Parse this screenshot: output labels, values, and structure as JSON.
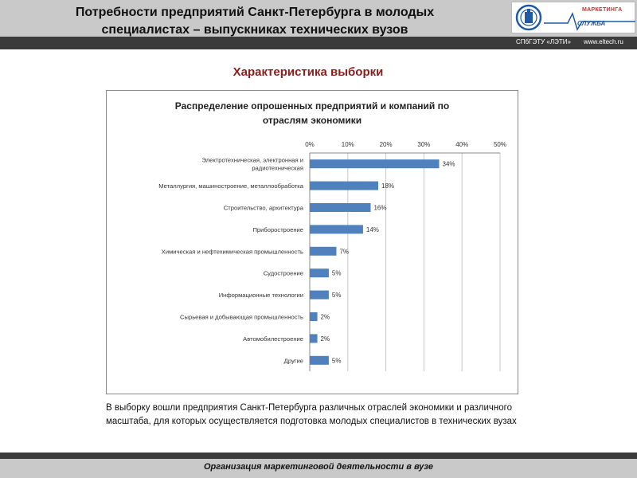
{
  "header": {
    "title_line1": "Потребности предприятий Санкт-Петербурга в молодых",
    "title_line2": "специалистах – выпускниках технических вузов",
    "logo_top": "МАРКЕТИНГА",
    "logo_bottom": "СЛУЖБА",
    "org": "СПбГЭТУ «ЛЭТИ»",
    "site": "www.eltech.ru"
  },
  "section_title": "Характеристика выборки",
  "chart_data": {
    "type": "bar",
    "orientation": "horizontal",
    "title_line1": "Распределение опрошенных предприятий и компаний по",
    "title_line2": "отраслям экономики",
    "categories": [
      [
        "Электротехническая, электронная и",
        "радиотехническая"
      ],
      [
        "Металлургия, машиностроение, металлообработка"
      ],
      [
        "Строительство, архитектура"
      ],
      [
        "Приборостроение"
      ],
      [
        "Химическая и нефтехимическая промышленность"
      ],
      [
        "Судостроение"
      ],
      [
        "Информационные технологии"
      ],
      [
        "Сырьевая и добывающая промышленность"
      ],
      [
        "Автомобилестроение"
      ],
      [
        "Другие"
      ]
    ],
    "values": [
      34,
      18,
      16,
      14,
      7,
      5,
      5,
      2,
      2,
      5
    ],
    "value_labels": [
      "34%",
      "18%",
      "16%",
      "14%",
      "7%",
      "5%",
      "5%",
      "2%",
      "2%",
      "5%"
    ],
    "x_ticks": [
      0,
      10,
      20,
      30,
      40,
      50
    ],
    "x_tick_labels": [
      "0%",
      "10%",
      "20%",
      "30%",
      "40%",
      "50%"
    ],
    "xlim": [
      0,
      50
    ],
    "xaxis_position": "top",
    "grid": true,
    "legend": "none",
    "bar_color": "#4f81bd"
  },
  "description": "В выборку вошли предприятия Санкт-Петербурга различных отраслей экономики и различного масштаба, для которых осуществляется подготовка молодых специалистов в технических вузах",
  "footer": "Организация маркетинговой деятельности в вузе"
}
